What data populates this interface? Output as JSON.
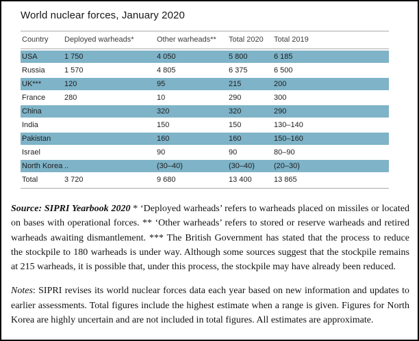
{
  "title": "World nuclear forces, January 2020",
  "chart_data": {
    "type": "table",
    "title": "World nuclear forces, January 2020",
    "columns": [
      "Country",
      "Deployed warheads*",
      "Other warheads**",
      "Total 2020",
      "Total 2019"
    ],
    "rows": [
      {
        "cells": [
          "USA",
          "1 750",
          "4 050",
          "5 800",
          "6 185"
        ],
        "highlight": true,
        "is_total": false
      },
      {
        "cells": [
          "Russia",
          "1 570",
          "4 805",
          "6 375",
          "6 500"
        ],
        "highlight": false,
        "is_total": false
      },
      {
        "cells": [
          "UK***",
          "120",
          "95",
          "215",
          "200"
        ],
        "highlight": true,
        "is_total": false
      },
      {
        "cells": [
          "France",
          "280",
          "10",
          "290",
          "300"
        ],
        "highlight": false,
        "is_total": false
      },
      {
        "cells": [
          "China",
          "",
          "320",
          "320",
          "290"
        ],
        "highlight": true,
        "is_total": false
      },
      {
        "cells": [
          "India",
          "",
          "150",
          "150",
          "130–140"
        ],
        "highlight": false,
        "is_total": false
      },
      {
        "cells": [
          "Pakistan",
          "",
          "160",
          "160",
          "150–160"
        ],
        "highlight": true,
        "is_total": false
      },
      {
        "cells": [
          "Israel",
          "",
          "90",
          "90",
          "80–90"
        ],
        "highlight": false,
        "is_total": false
      },
      {
        "cells": [
          "North Korea",
          "..",
          "(30–40)",
          "(30–40)",
          "(20–30)"
        ],
        "highlight": true,
        "is_total": false
      },
      {
        "cells": [
          "Total",
          "3 720",
          "9 680",
          "13 400",
          "13 865"
        ],
        "highlight": false,
        "is_total": true
      }
    ]
  },
  "footnotes": {
    "source_lead": "Source: SIPRI Yearbook 2020",
    "source_text": " * ‘Deployed warheads’ refers to warheads placed on missiles or located on bases with operational forces. ** ‘Other warheads’ refers to stored or reserve warheads and retired warheads awaiting dismantlement. *** The British Government has stated that the process to reduce the stockpile to 180 warheads is under way. Although some sources suggest that the stockpile remains at 215 warheads, it is possible that, under this process, the stockpile may have already been reduced.",
    "notes_lead": "Notes",
    "notes_text": ": SIPRI revises its world nuclear forces data each year based on new information and updates to earlier assessments. Total figures include the highest estimate when a range is given. Figures for North Korea are highly uncertain and are not included in total figures. All estimates are approximate."
  },
  "colors": {
    "row_highlight": "#7eb3c8",
    "rule": "#a9a9a9"
  }
}
